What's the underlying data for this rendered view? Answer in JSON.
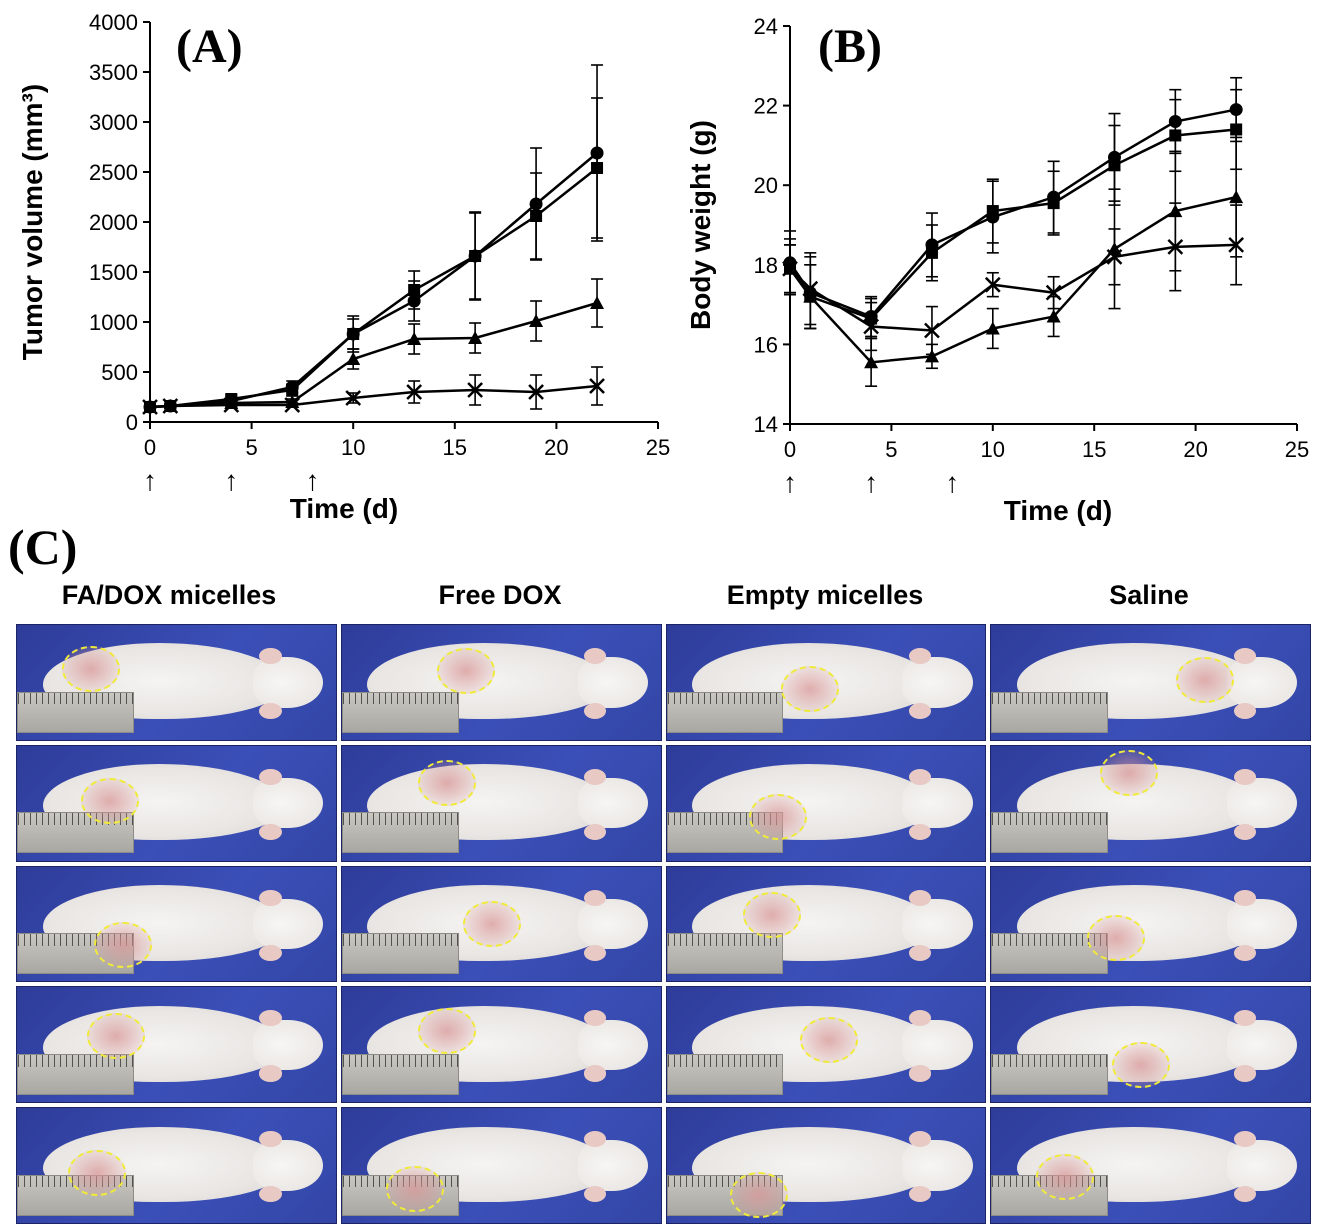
{
  "chart_data": [
    {
      "type": "line",
      "panel_label": "(A)",
      "title": "",
      "xlabel": "Time (d)",
      "ylabel": "Tumor volume (mm³)",
      "xlim": [
        0,
        25
      ],
      "ylim": [
        0,
        4000
      ],
      "x_ticks": [
        0,
        5,
        10,
        15,
        20,
        25
      ],
      "y_ticks": [
        0,
        500,
        1000,
        1500,
        2000,
        2500,
        3000,
        3500,
        4000
      ],
      "x_tick_labels": [
        "0",
        "5",
        "10",
        "15",
        "20",
        "25"
      ],
      "y_tick_labels": [
        "0",
        "500",
        "1000",
        "1500",
        "2000",
        "2500",
        "3000",
        "3500",
        "4000"
      ],
      "arrows_at": [
        0,
        4,
        8
      ],
      "arrow_glyph": "↑",
      "x": [
        0,
        1,
        4,
        7,
        10,
        13,
        16,
        19,
        22
      ],
      "series": [
        {
          "marker": "circle",
          "values": [
            150,
            160,
            210,
            350,
            880,
            1210,
            1660,
            2180,
            2690
          ],
          "errors": [
            20,
            20,
            40,
            60,
            150,
            200,
            430,
            560,
            880
          ]
        },
        {
          "marker": "square",
          "values": [
            150,
            160,
            230,
            320,
            880,
            1320,
            1660,
            2060,
            2540
          ],
          "errors": [
            20,
            20,
            40,
            60,
            180,
            190,
            440,
            430,
            700
          ]
        },
        {
          "marker": "triangle",
          "values": [
            150,
            160,
            190,
            200,
            630,
            830,
            840,
            1010,
            1190
          ],
          "errors": [
            20,
            20,
            30,
            30,
            100,
            150,
            150,
            200,
            240
          ]
        },
        {
          "marker": "x",
          "values": [
            150,
            160,
            170,
            170,
            240,
            300,
            320,
            300,
            360
          ],
          "errors": [
            20,
            20,
            20,
            20,
            50,
            110,
            150,
            170,
            190
          ]
        }
      ]
    },
    {
      "type": "line",
      "panel_label": "(B)",
      "title": "",
      "xlabel": "Time (d)",
      "ylabel": "Body weight (g)",
      "xlim": [
        0,
        25
      ],
      "ylim": [
        14,
        24
      ],
      "x_ticks": [
        0,
        5,
        10,
        15,
        20,
        25
      ],
      "y_ticks": [
        14,
        16,
        18,
        20,
        22,
        24
      ],
      "x_tick_labels": [
        "0",
        "5",
        "10",
        "15",
        "20",
        "25"
      ],
      "y_tick_labels": [
        "14",
        "16",
        "18",
        "20",
        "22",
        "24"
      ],
      "arrows_at": [
        0,
        4,
        8
      ],
      "arrow_glyph": "↑",
      "x": [
        0,
        1,
        4,
        7,
        10,
        13,
        16,
        19,
        22
      ],
      "series": [
        {
          "marker": "circle",
          "values": [
            18.05,
            17.3,
            16.7,
            18.5,
            19.2,
            19.7,
            20.7,
            21.6,
            21.9
          ],
          "errors": [
            0.8,
            0.9,
            0.5,
            0.8,
            0.9,
            0.9,
            1.1,
            0.8,
            0.8
          ]
        },
        {
          "marker": "square",
          "values": [
            17.95,
            17.2,
            16.65,
            18.3,
            19.35,
            19.55,
            20.5,
            21.25,
            21.4
          ],
          "errors": [
            0.7,
            0.8,
            0.5,
            0.7,
            0.8,
            0.8,
            1.0,
            0.9,
            1.0
          ]
        },
        {
          "marker": "triangle",
          "values": [
            17.9,
            17.2,
            15.55,
            15.7,
            16.4,
            16.7,
            18.4,
            19.35,
            19.7
          ],
          "errors": [
            0.6,
            0.8,
            0.6,
            0.3,
            0.5,
            0.5,
            1.5,
            1.5,
            1.5
          ]
        },
        {
          "marker": "x",
          "values": [
            17.9,
            17.4,
            16.45,
            16.35,
            17.5,
            17.3,
            18.2,
            18.45,
            18.5
          ],
          "errors": [
            0.6,
            0.9,
            0.6,
            0.6,
            0.3,
            0.4,
            0.7,
            1.1,
            1.0
          ]
        }
      ]
    }
  ],
  "panel_c": {
    "label": "(C)",
    "columns": [
      "FA/DOX micelles",
      "Free DOX",
      "Empty micelles",
      "Saline"
    ],
    "rows": 5
  }
}
